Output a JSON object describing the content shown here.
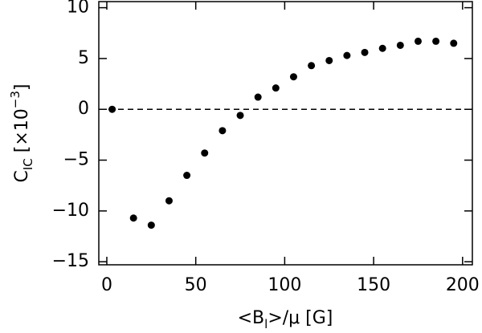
{
  "chart_data": {
    "type": "scatter",
    "xlabel": {
      "open": "<B",
      "sub": "l",
      "close": ">/μ [G]"
    },
    "ylabel": {
      "main": "C",
      "sub": "IC",
      "open": " [×10",
      "sup": "−3",
      "close": "]"
    },
    "x": [
      3,
      15,
      25,
      35,
      45,
      55,
      65,
      75,
      85,
      95,
      105,
      115,
      125,
      135,
      145,
      155,
      165,
      175,
      185,
      195
    ],
    "series": [
      {
        "color": "#000000",
        "values": [
          0,
          -10.7,
          -11.4,
          -9.0,
          -6.5,
          -4.3,
          -2.1,
          -0.6,
          1.2,
          2.1,
          3.2,
          4.3,
          4.8,
          5.3,
          5.6,
          6.0,
          6.3,
          6.7,
          6.7,
          6.5
        ]
      }
    ],
    "xlim": [
      -4.5,
      205.5
    ],
    "ylim": [
      -15.3,
      10.6
    ],
    "xticks": [
      0,
      50,
      100,
      150,
      200
    ],
    "yticks": [
      {
        "value": -15,
        "label": "−15"
      },
      {
        "value": -10,
        "label": "−10"
      },
      {
        "value": -5,
        "label": "−5"
      },
      0,
      5,
      10
    ],
    "hline": 0
  }
}
